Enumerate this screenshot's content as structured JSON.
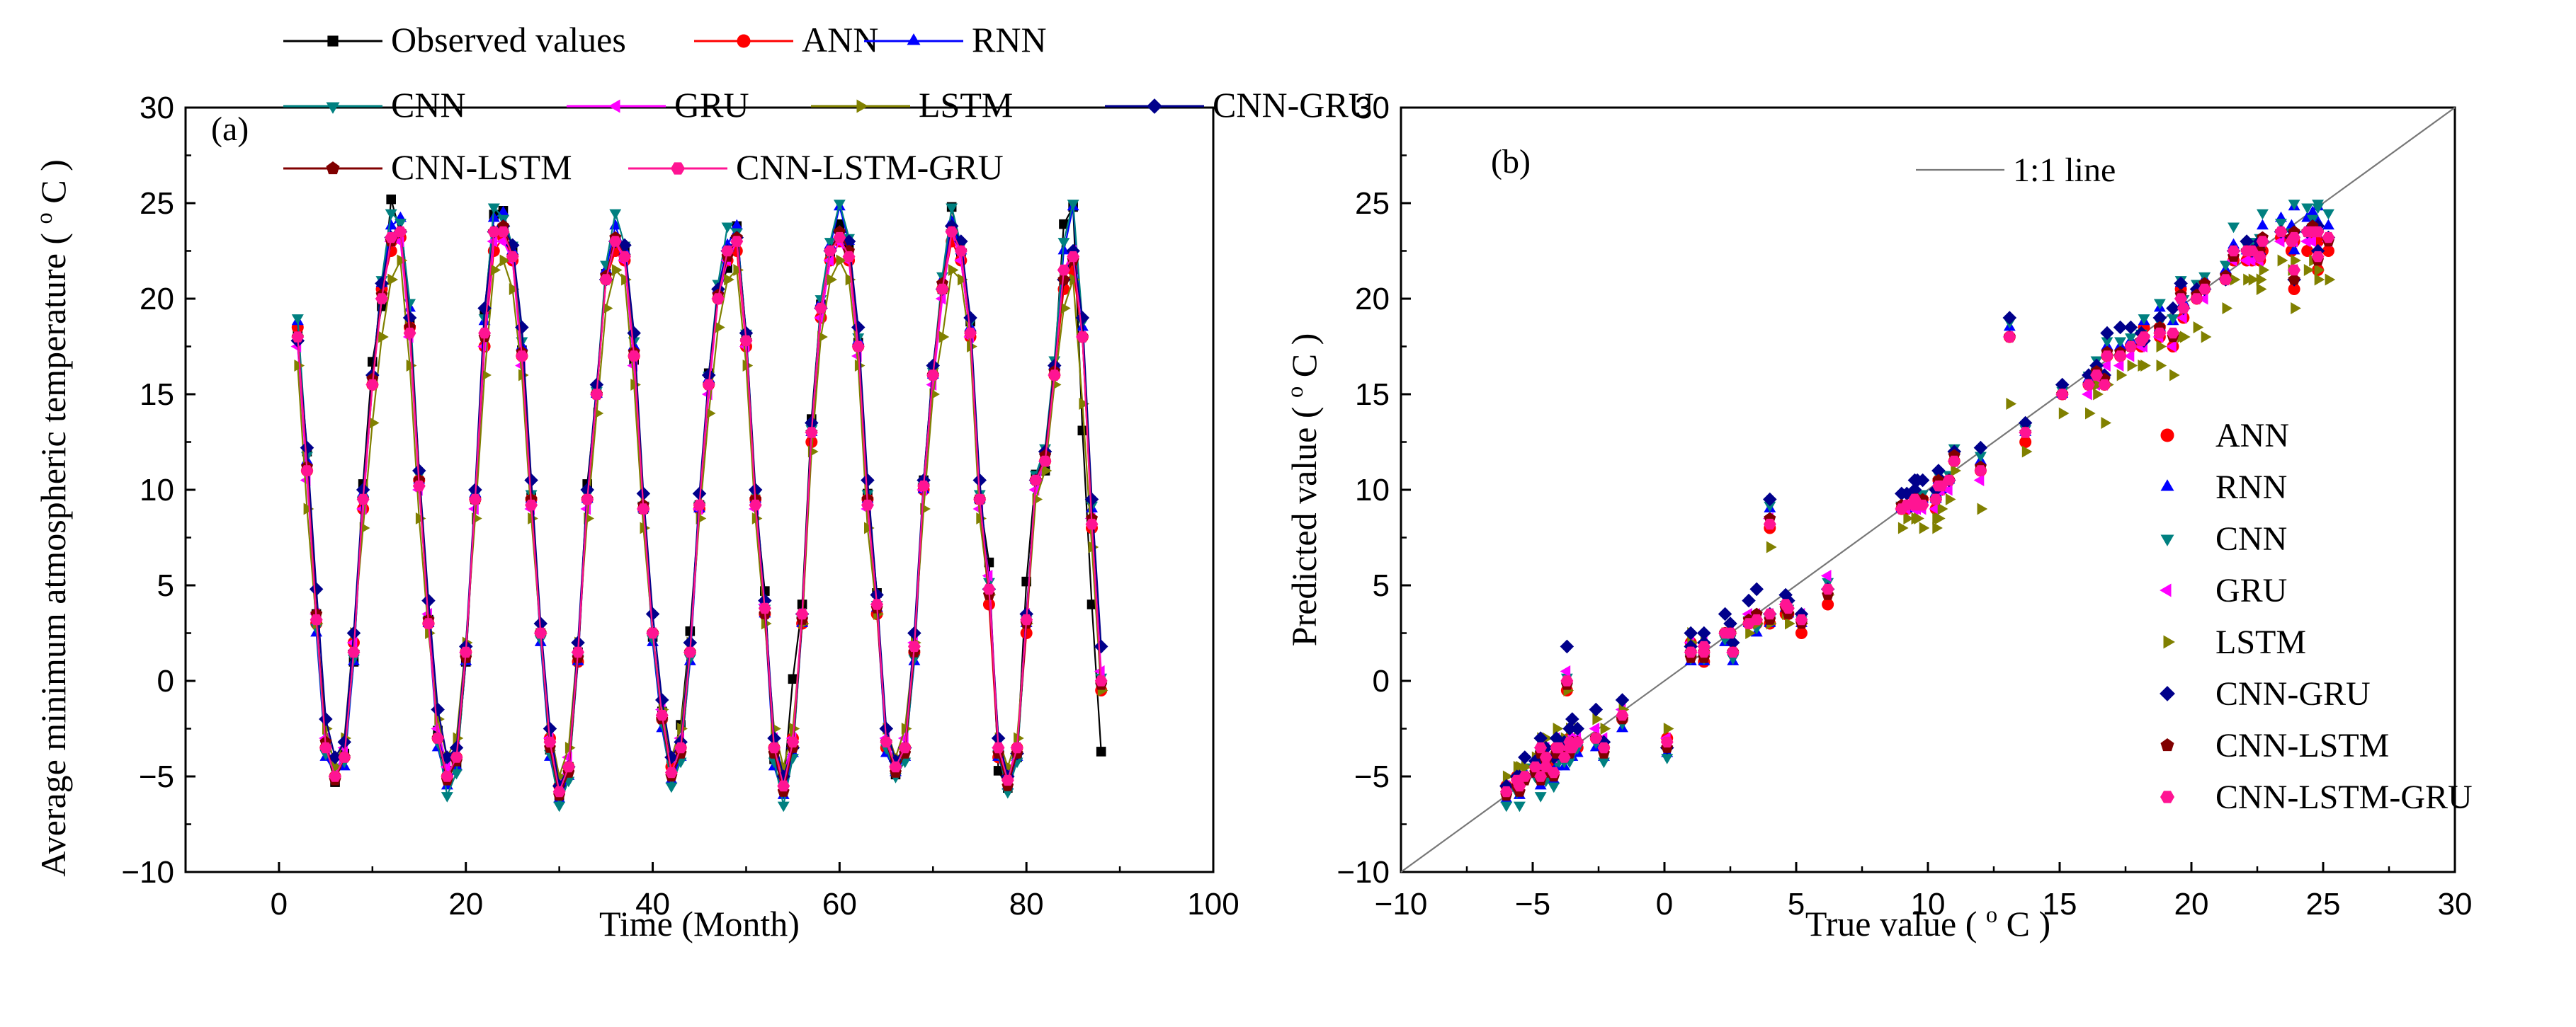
{
  "chart_data": [
    {
      "type": "line",
      "panel_label": "(a)",
      "xlabel": "Time (Month)",
      "ylabel": "Average minimum atmospheric temperature ( °C )",
      "ylabel_parts": {
        "main": "Average minimum atmospheric temperature ( ",
        "sup": "o",
        "unit": "C )"
      },
      "xlim": [
        -10,
        100
      ],
      "ylim": [
        -10,
        30
      ],
      "xticks": [
        0,
        20,
        40,
        60,
        80,
        100
      ],
      "xtick_labels": [
        "0",
        "20",
        "40",
        "60",
        "80",
        "100"
      ],
      "yticks": [
        -10,
        -5,
        0,
        5,
        10,
        15,
        20,
        25,
        30
      ],
      "ytick_labels": [
        "−10",
        "−5",
        "0",
        "5",
        "10",
        "15",
        "20",
        "25",
        "30"
      ],
      "grid": false,
      "legend_position": "top",
      "x": [
        2,
        3,
        4,
        5,
        6,
        7,
        8,
        9,
        10,
        11,
        12,
        13,
        14,
        15,
        16,
        17,
        18,
        19,
        20,
        21,
        22,
        23,
        24,
        25,
        26,
        27,
        28,
        29,
        30,
        31,
        32,
        33,
        34,
        35,
        36,
        37,
        38,
        39,
        40,
        41,
        42,
        43,
        44,
        45,
        46,
        47,
        48,
        49,
        50,
        51,
        52,
        53,
        54,
        55,
        56,
        57,
        58,
        59,
        60,
        61,
        62,
        63,
        64,
        65,
        66,
        67,
        68,
        69,
        70,
        71,
        72,
        73,
        74,
        75,
        76,
        77,
        78,
        79,
        80,
        81,
        82,
        83,
        84,
        85,
        86,
        87,
        88
      ],
      "series": [
        {
          "name": "Observed  values",
          "color": "#000000",
          "marker": "square",
          "values": [
            18.2,
            12.0,
            3.5,
            -3.5,
            -5.3,
            -3.8,
            1.0,
            10.3,
            16.7,
            19.6,
            25.2,
            23.4,
            18.8,
            10.4,
            3.2,
            -2.6,
            -4.7,
            -4.5,
            1.0,
            9.5,
            19.3,
            24.4,
            24.6,
            22.6,
            17.3,
            9.6,
            2.5,
            -3.6,
            -6.0,
            -4.5,
            1.5,
            10.3,
            15.1,
            21.3,
            22.7,
            22.6,
            16.8,
            9.0,
            2.3,
            -1.6,
            -4.2,
            -2.3,
            2.6,
            9.2,
            16.1,
            20.2,
            21.6,
            23.8,
            18.1,
            9.5,
            4.7,
            -4.1,
            -5.5,
            0.1,
            4.0,
            13.7,
            19.7,
            22.3,
            23.9,
            22.6,
            17.7,
            9.8,
            4.6,
            -3.3,
            -4.9,
            -3.6,
            1.5,
            10.5,
            16.4,
            20.5,
            24.8,
            22.1,
            18.8,
            9.5,
            6.2,
            -4.7,
            -5.6,
            -4.0,
            5.2,
            10.8,
            11.0,
            16.4,
            23.9,
            24.8,
            13.1,
            4.0,
            -3.7
          ]
        },
        {
          "name": "ANN",
          "color": "#ff0000",
          "marker": "circle",
          "values": [
            18.5,
            11.0,
            3.0,
            -3.5,
            -5.0,
            -4.0,
            2.0,
            9.0,
            15.5,
            20.5,
            22.5,
            23.2,
            18.5,
            10.5,
            3.0,
            -3.0,
            -5.0,
            -4.0,
            1.5,
            9.5,
            17.5,
            22.5,
            23.2,
            22.0,
            17.0,
            9.5,
            2.5,
            -3.0,
            -5.5,
            -4.5,
            1.0,
            9.5,
            15.0,
            21.0,
            22.5,
            22.0,
            17.0,
            9.0,
            2.5,
            -2.0,
            -4.5,
            -3.5,
            1.5,
            9.0,
            15.5,
            20.0,
            22.0,
            22.5,
            17.5,
            9.5,
            3.5,
            -3.5,
            -5.0,
            -3.0,
            3.0,
            12.5,
            19.0,
            22.0,
            23.0,
            22.0,
            17.5,
            9.5,
            3.5,
            -3.5,
            -4.5,
            -3.5,
            1.5,
            10.0,
            16.0,
            20.5,
            23.0,
            22.0,
            18.0,
            9.5,
            4.0,
            -4.0,
            -5.0,
            -3.5,
            2.5,
            10.5,
            11.5,
            16.0,
            20.5,
            21.5,
            18.0,
            8.0,
            -0.5
          ]
        },
        {
          "name": "RNN",
          "color": "#0000ff",
          "marker": "triangle-up",
          "values": [
            18.8,
            11.5,
            2.5,
            -4.0,
            -4.8,
            -4.5,
            1.0,
            9.8,
            16.0,
            20.8,
            23.8,
            24.2,
            19.5,
            10.5,
            3.0,
            -3.5,
            -5.5,
            -4.5,
            1.0,
            9.8,
            18.8,
            24.2,
            24.5,
            22.5,
            17.5,
            9.5,
            2.0,
            -4.0,
            -6.2,
            -5.0,
            1.0,
            9.5,
            15.0,
            21.5,
            23.8,
            22.5,
            17.5,
            9.0,
            2.0,
            -2.5,
            -5.2,
            -4.0,
            1.0,
            9.0,
            15.8,
            20.5,
            22.8,
            23.8,
            18.0,
            9.5,
            3.5,
            -4.5,
            -6.0,
            -3.8,
            3.0,
            13.0,
            19.8,
            22.8,
            24.8,
            23.0,
            17.8,
            9.5,
            3.8,
            -3.8,
            -4.8,
            -4.0,
            1.0,
            10.0,
            16.0,
            21.0,
            24.0,
            22.5,
            18.5,
            9.5,
            5.0,
            -4.0,
            -5.5,
            -4.0,
            3.0,
            10.5,
            12.0,
            16.5,
            22.5,
            24.8,
            18.5,
            9.0,
            0.0
          ]
        },
        {
          "name": "CNN",
          "color": "#008080",
          "marker": "triangle-down",
          "values": [
            19.0,
            11.8,
            2.8,
            -3.8,
            -4.5,
            -4.2,
            1.2,
            9.5,
            15.8,
            21.0,
            24.5,
            24.0,
            19.8,
            10.8,
            3.2,
            -3.2,
            -6.0,
            -4.8,
            1.2,
            9.8,
            19.0,
            24.8,
            24.2,
            22.8,
            17.8,
            9.8,
            2.2,
            -3.8,
            -6.5,
            -5.2,
            1.2,
            9.8,
            15.2,
            21.8,
            24.5,
            22.8,
            17.8,
            9.2,
            2.2,
            -2.2,
            -5.5,
            -4.2,
            1.2,
            9.2,
            16.0,
            20.8,
            23.8,
            23.5,
            18.2,
            9.8,
            3.8,
            -4.2,
            -6.5,
            -4.0,
            3.2,
            13.2,
            20.0,
            23.0,
            25.0,
            23.2,
            18.0,
            9.8,
            4.0,
            -3.5,
            -5.0,
            -4.2,
            1.2,
            10.2,
            16.2,
            21.2,
            24.8,
            22.8,
            18.8,
            9.8,
            5.2,
            -3.8,
            -5.8,
            -4.2,
            3.2,
            10.8,
            12.2,
            16.8,
            23.0,
            25.0,
            18.8,
            9.2,
            0.2
          ]
        },
        {
          "name": "GRU",
          "color": "#ff00ff",
          "marker": "triangle-left",
          "values": [
            17.5,
            10.5,
            3.5,
            -3.0,
            -5.0,
            -3.5,
            2.0,
            9.0,
            15.5,
            20.0,
            23.0,
            23.0,
            18.0,
            10.0,
            3.5,
            -2.5,
            -4.5,
            -3.5,
            1.5,
            9.0,
            17.5,
            23.0,
            23.0,
            22.0,
            16.5,
            9.0,
            2.5,
            -3.0,
            -5.5,
            -4.0,
            1.5,
            9.0,
            15.0,
            21.0,
            23.0,
            22.0,
            16.5,
            9.0,
            2.5,
            -1.5,
            -4.0,
            -3.0,
            1.5,
            9.0,
            15.0,
            20.0,
            22.0,
            23.0,
            17.5,
            9.0,
            4.0,
            -3.0,
            -5.0,
            -3.0,
            3.5,
            13.0,
            19.0,
            22.0,
            23.0,
            22.0,
            17.0,
            9.0,
            4.0,
            -3.0,
            -4.5,
            -3.0,
            2.0,
            10.0,
            15.5,
            20.0,
            23.5,
            22.0,
            18.0,
            9.0,
            5.5,
            -3.5,
            -5.0,
            -3.5,
            3.5,
            10.0,
            11.5,
            16.0,
            21.5,
            22.5,
            18.0,
            8.5,
            0.5
          ]
        },
        {
          "name": "LSTM",
          "color": "#808000",
          "marker": "triangle-right",
          "values": [
            16.5,
            9.0,
            3.0,
            -2.5,
            -4.5,
            -3.0,
            2.5,
            8.0,
            13.5,
            18.0,
            21.0,
            22.0,
            16.5,
            8.5,
            2.5,
            -2.0,
            -4.0,
            -3.0,
            2.0,
            8.5,
            16.0,
            21.5,
            22.0,
            20.5,
            16.0,
            8.5,
            2.5,
            -2.5,
            -5.0,
            -3.5,
            2.0,
            8.5,
            14.0,
            19.5,
            21.5,
            21.0,
            15.5,
            8.0,
            2.5,
            -1.5,
            -4.0,
            -2.5,
            2.0,
            8.5,
            14.0,
            18.5,
            21.0,
            21.5,
            16.5,
            8.5,
            3.0,
            -2.5,
            -4.5,
            -2.5,
            3.0,
            12.0,
            18.0,
            21.0,
            22.0,
            21.0,
            16.5,
            8.0,
            3.5,
            -2.5,
            -4.0,
            -2.5,
            2.0,
            9.0,
            15.0,
            18.0,
            21.5,
            21.0,
            17.5,
            8.5,
            4.5,
            -3.0,
            -4.5,
            -3.0,
            3.0,
            9.5,
            11.0,
            15.5,
            19.5,
            21.0,
            14.5,
            7.0,
            -0.5
          ]
        },
        {
          "name": "CNN-GRU",
          "color": "#00008b",
          "marker": "diamond",
          "values": [
            17.8,
            12.2,
            4.8,
            -2.0,
            -4.0,
            -3.2,
            2.5,
            10.0,
            16.0,
            20.8,
            23.2,
            23.5,
            19.0,
            11.0,
            4.2,
            -1.5,
            -4.0,
            -3.5,
            1.8,
            10.0,
            19.5,
            23.5,
            23.8,
            22.8,
            18.5,
            10.5,
            3.0,
            -2.5,
            -5.5,
            -4.5,
            2.0,
            10.0,
            15.5,
            21.0,
            23.0,
            22.8,
            18.2,
            9.8,
            3.5,
            -1.0,
            -4.0,
            -3.2,
            2.0,
            9.8,
            16.0,
            20.5,
            22.5,
            23.2,
            18.2,
            10.0,
            4.2,
            -3.0,
            -5.0,
            -3.5,
            3.5,
            13.5,
            19.5,
            22.5,
            23.5,
            23.0,
            18.5,
            10.5,
            4.5,
            -2.5,
            -4.2,
            -3.5,
            2.5,
            10.5,
            16.5,
            20.5,
            23.8,
            23.0,
            19.0,
            10.5,
            4.8,
            -3.0,
            -5.0,
            -3.8,
            3.5,
            10.5,
            12.0,
            16.5,
            21.0,
            22.5,
            19.0,
            9.5,
            1.8
          ]
        },
        {
          "name": "CNN-LSTM",
          "color": "#800000",
          "marker": "pentagon",
          "values": [
            18.0,
            11.2,
            3.5,
            -3.2,
            -5.2,
            -4.0,
            1.5,
            9.5,
            15.8,
            20.2,
            23.0,
            23.5,
            18.5,
            10.5,
            3.2,
            -3.0,
            -5.2,
            -4.2,
            1.2,
            9.5,
            18.0,
            23.5,
            23.8,
            22.2,
            17.2,
            9.5,
            2.5,
            -3.5,
            -6.0,
            -4.8,
            1.2,
            9.5,
            15.0,
            21.2,
            23.2,
            22.2,
            17.2,
            9.2,
            2.5,
            -2.0,
            -5.0,
            -3.8,
            1.5,
            9.2,
            15.5,
            20.2,
            22.2,
            23.2,
            17.8,
            9.5,
            3.5,
            -3.8,
            -5.8,
            -3.5,
            3.2,
            13.0,
            19.5,
            22.5,
            23.5,
            22.5,
            17.5,
            9.5,
            3.8,
            -3.2,
            -4.8,
            -3.8,
            1.5,
            10.2,
            16.0,
            20.8,
            23.5,
            22.5,
            18.2,
            9.5,
            4.5,
            -3.8,
            -5.5,
            -3.8,
            3.0,
            10.5,
            11.8,
            16.2,
            21.0,
            22.0,
            18.0,
            8.5,
            -0.2
          ]
        },
        {
          "name": "CNN-LSTM-GRU",
          "color": "#ff1493",
          "marker": "hexagon",
          "values": [
            18.0,
            11.0,
            3.2,
            -3.5,
            -5.0,
            -4.0,
            1.5,
            9.5,
            15.5,
            20.0,
            23.2,
            23.5,
            18.2,
            10.2,
            3.0,
            -3.0,
            -5.0,
            -4.0,
            1.5,
            9.5,
            18.2,
            23.5,
            23.5,
            22.2,
            17.0,
            9.2,
            2.5,
            -3.2,
            -5.8,
            -4.5,
            1.5,
            9.5,
            15.0,
            21.0,
            23.0,
            22.2,
            17.0,
            9.0,
            2.5,
            -1.8,
            -4.8,
            -3.5,
            1.5,
            9.2,
            15.5,
            20.0,
            22.5,
            23.0,
            17.8,
            9.2,
            3.8,
            -3.5,
            -5.5,
            -3.2,
            3.5,
            13.0,
            19.5,
            22.5,
            23.2,
            22.2,
            17.5,
            9.2,
            4.0,
            -3.2,
            -4.5,
            -3.5,
            1.8,
            10.2,
            16.0,
            20.5,
            23.5,
            22.5,
            18.2,
            9.5,
            4.8,
            -3.5,
            -5.2,
            -3.5,
            3.2,
            10.5,
            11.5,
            16.0,
            21.5,
            22.2,
            18.0,
            8.2,
            0.0
          ]
        }
      ]
    },
    {
      "type": "scatter",
      "panel_label": "(b)",
      "xlabel": "True value ( °C )",
      "xlabel_parts": {
        "main": "True value ( ",
        "sup": "o",
        "unit": "C )"
      },
      "ylabel": "Predicted value ( °C )",
      "ylabel_parts": {
        "main": "Predicted value ( ",
        "sup": "o",
        "unit": "C )"
      },
      "xlim": [
        -10,
        30
      ],
      "ylim": [
        -10,
        30
      ],
      "xticks": [
        -10,
        -5,
        0,
        5,
        10,
        15,
        20,
        25,
        30
      ],
      "xtick_labels": [
        "−10",
        "−5",
        "0",
        "5",
        "10",
        "15",
        "20",
        "25",
        "30"
      ],
      "yticks": [
        -10,
        -5,
        0,
        5,
        10,
        15,
        20,
        25,
        30
      ],
      "ytick_labels": [
        "−10",
        "−5",
        "0",
        "5",
        "10",
        "15",
        "20",
        "25",
        "30"
      ],
      "grid": false,
      "reference_line": {
        "label": "1:1 line",
        "from": [
          -10,
          -10
        ],
        "to": [
          30,
          30
        ]
      },
      "legend_position": "right",
      "legend_entries": [
        "ANN",
        "RNN",
        "CNN",
        "GRU",
        "LSTM",
        "CNN-GRU",
        "CNN-LSTM",
        "CNN-LSTM-GRU"
      ],
      "x_source": "observed values from panel (a)",
      "y_source": "model predictions from panel (a)"
    }
  ]
}
